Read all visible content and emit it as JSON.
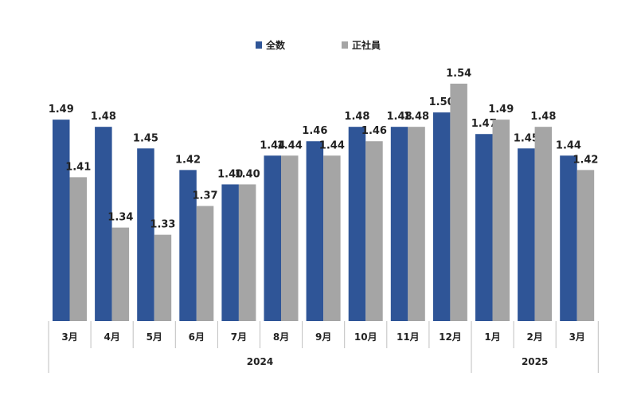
{
  "chart_data": {
    "type": "bar",
    "categories": [
      "3月",
      "4月",
      "5月",
      "6月",
      "7月",
      "8月",
      "9月",
      "10月",
      "11月",
      "12月",
      "1月",
      "2月",
      "3月"
    ],
    "years": [
      {
        "label": "2024",
        "count": 10
      },
      {
        "label": "2025",
        "count": 3
      }
    ],
    "series": [
      {
        "name": "全数",
        "color": "#2f5597",
        "values": [
          1.49,
          1.48,
          1.45,
          1.42,
          1.4,
          1.44,
          1.46,
          1.48,
          1.48,
          1.5,
          1.47,
          1.45,
          1.44
        ],
        "labels": [
          "1.49",
          "1.48",
          "1.45",
          "1.42",
          "1.40",
          "1.44",
          "1.46",
          "1.48",
          "1.48",
          "1.50",
          "1.47",
          "1.45",
          "1.44"
        ]
      },
      {
        "name": "正社員",
        "color": "#a5a5a5",
        "values": [
          1.41,
          1.34,
          1.33,
          1.37,
          1.4,
          1.44,
          1.44,
          1.46,
          1.48,
          1.54,
          1.49,
          1.48,
          1.42
        ],
        "labels": [
          "1.41",
          "1.34",
          "1.33",
          "1.37",
          "1.40",
          "1.44",
          "1.44",
          "1.46",
          "1.48",
          "1.54",
          "1.49",
          "1.48",
          "1.42"
        ]
      }
    ],
    "ylim": [
      1.21,
      1.54
    ],
    "legend": "top-center",
    "grid": false
  }
}
